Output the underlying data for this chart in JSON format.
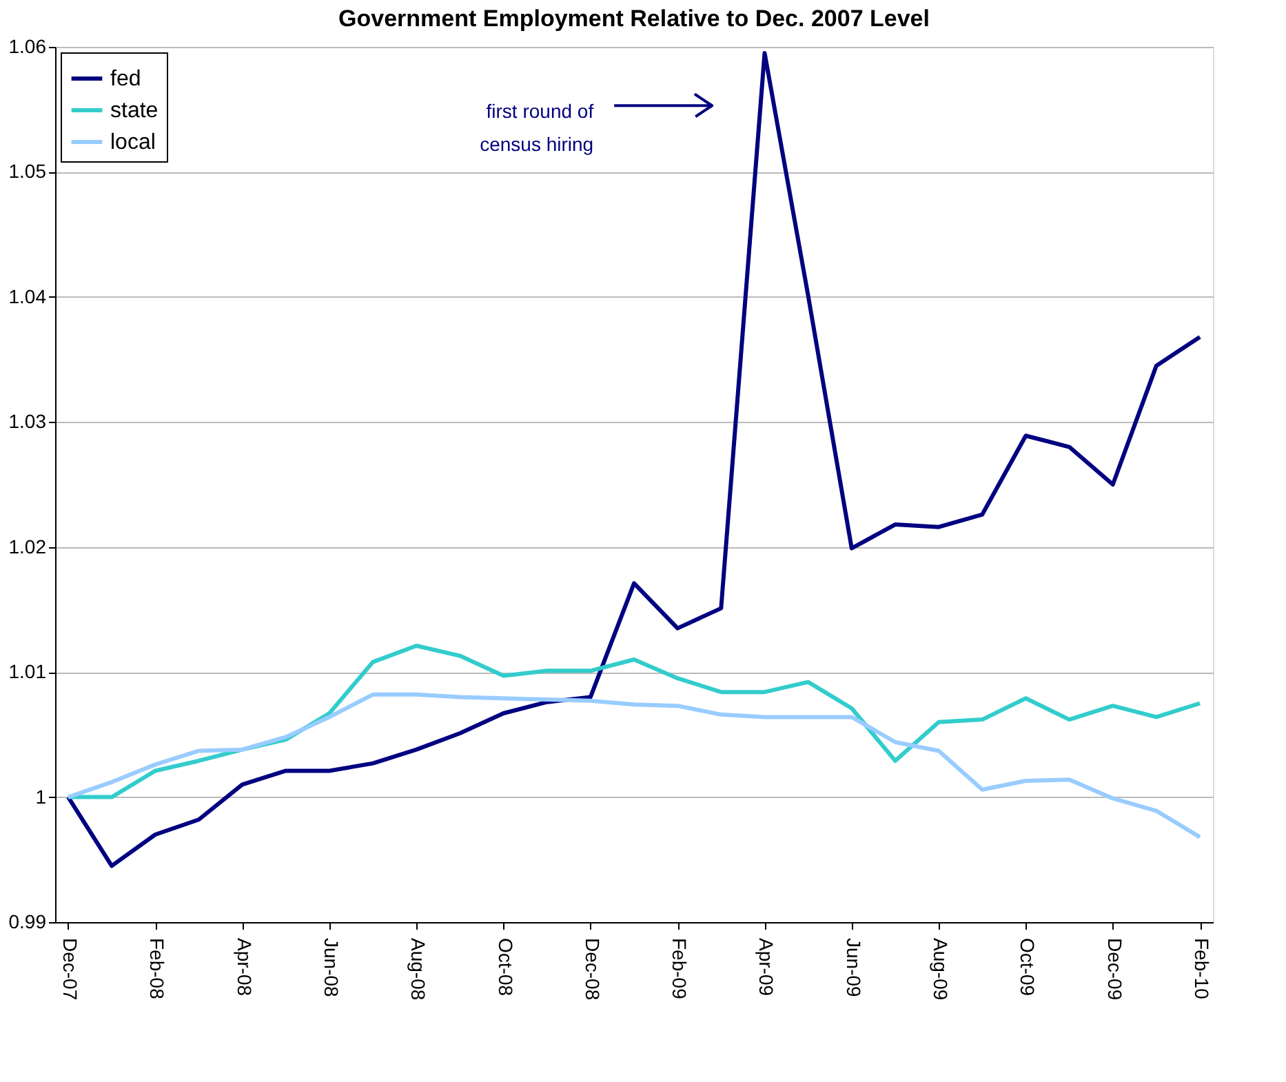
{
  "chart_data": {
    "type": "line",
    "title": "Government Employment Relative to Dec. 2007 Level",
    "categories": [
      "Dec-07",
      null,
      "Feb-08",
      null,
      "Apr-08",
      null,
      "Jun-08",
      null,
      "Aug-08",
      null,
      "Oct-08",
      null,
      "Dec-08",
      null,
      "Feb-09",
      null,
      "Apr-09",
      null,
      "Jun-09",
      null,
      "Aug-09",
      null,
      "Oct-09",
      null,
      "Dec-09",
      null,
      "Feb-10"
    ],
    "series": [
      {
        "name": "fed",
        "color": "#000080",
        "values": [
          1.0,
          0.9945,
          0.997,
          0.9982,
          1.001,
          1.0021,
          1.0021,
          1.0027,
          1.0038,
          1.0051,
          1.0067,
          1.0076,
          1.008,
          1.0171,
          1.0135,
          1.0151,
          1.0595,
          1.0401,
          1.0199,
          1.0218,
          1.0216,
          1.0226,
          1.0289,
          1.028,
          1.025,
          1.0345,
          1.0368
        ]
      },
      {
        "name": "state",
        "color": "#33cccc",
        "values": [
          1.0,
          1.0,
          1.0021,
          1.0029,
          1.0038,
          1.0046,
          1.0067,
          1.0108,
          1.0121,
          1.0113,
          1.0097,
          1.0101,
          1.0101,
          1.011,
          1.0095,
          1.0084,
          1.0084,
          1.0092,
          1.0071,
          1.0029,
          1.006,
          1.0062,
          1.0079,
          1.0062,
          1.0073,
          1.0064,
          1.0075
        ]
      },
      {
        "name": "local",
        "color": "#99ccff",
        "values": [
          1.0,
          1.0012,
          1.0026,
          1.0037,
          1.0038,
          1.0048,
          1.0064,
          1.0082,
          1.0082,
          1.008,
          1.0079,
          1.0078,
          1.0077,
          1.0074,
          1.0073,
          1.0066,
          1.0064,
          1.0064,
          1.0064,
          1.0044,
          1.0037,
          1.0006,
          1.0013,
          1.0014,
          0.9999,
          0.9989,
          0.9968
        ]
      }
    ],
    "ylim": [
      0.99,
      1.06
    ],
    "yticks": [
      0.99,
      1,
      1.01,
      1.02,
      1.03,
      1.04,
      1.05,
      1.06
    ],
    "grid": "y",
    "legend": "top left",
    "line_style": "solid",
    "marker": "none",
    "annotations": [
      "first round of\ncensus hiring"
    ]
  }
}
